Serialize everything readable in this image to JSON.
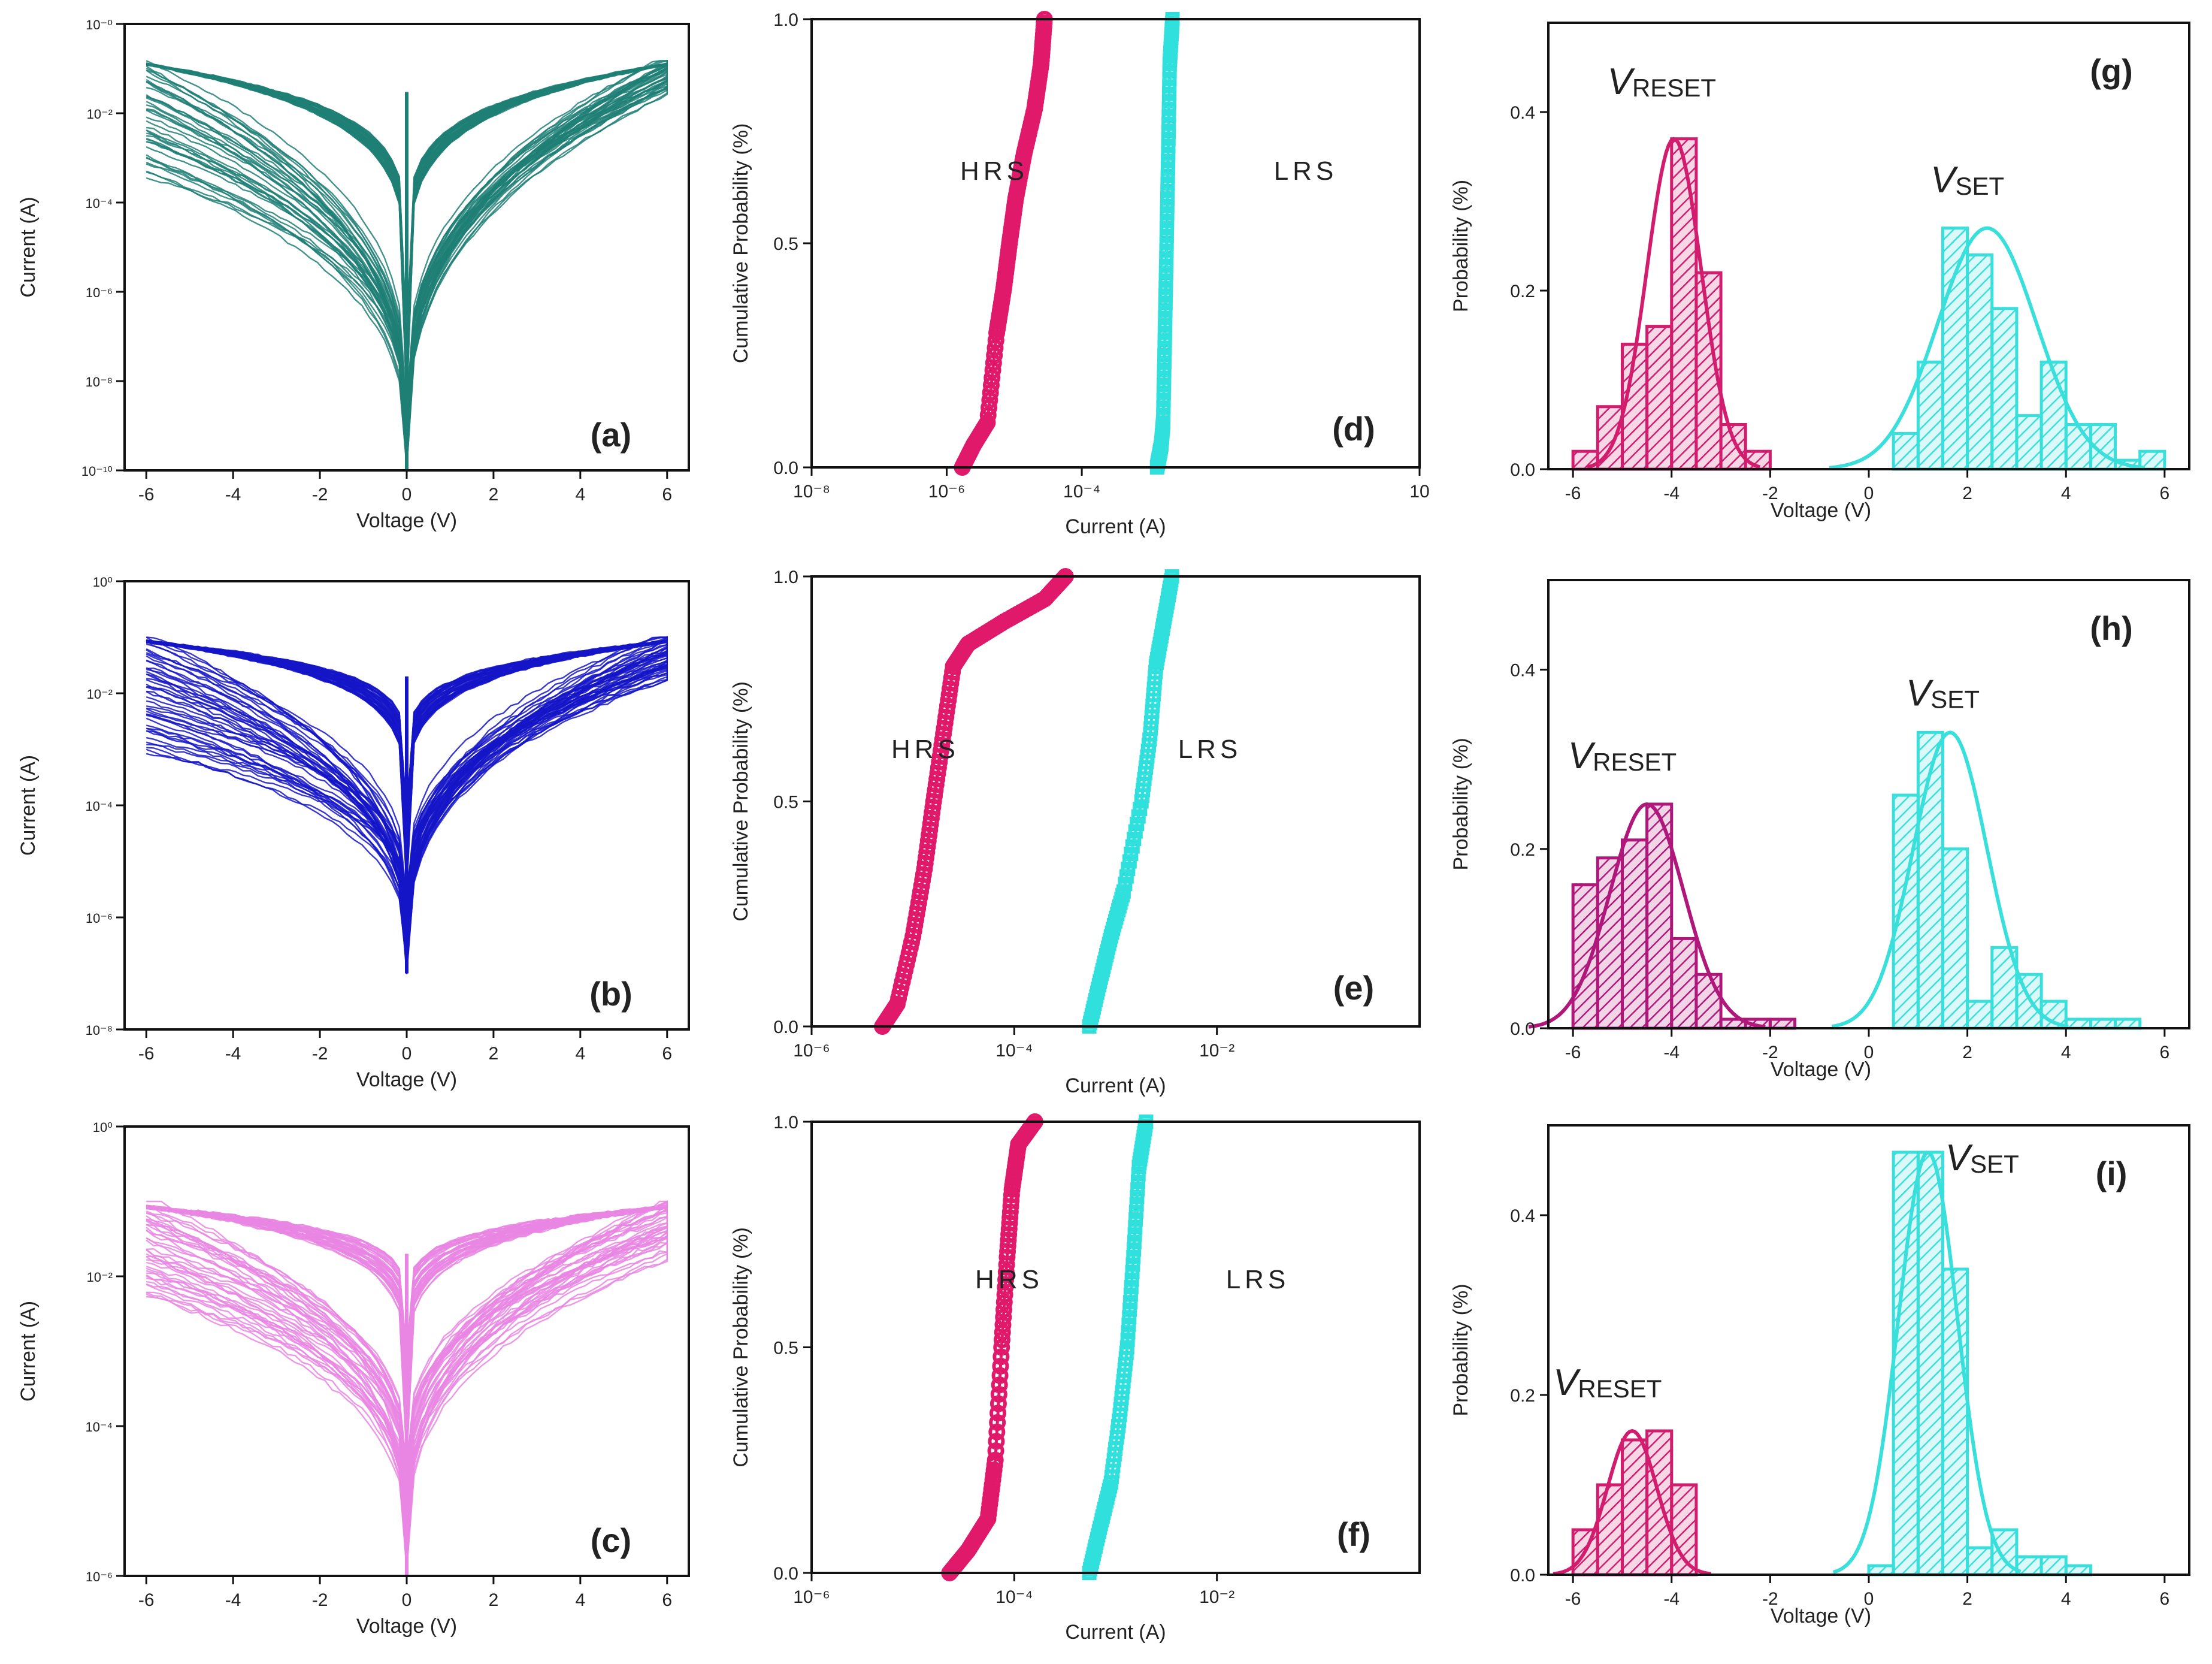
{
  "colors": {
    "a": "#1e7f76",
    "b": "#1515c8",
    "c": "#e986e3",
    "hrs": "#e0196b",
    "lrs": "#30e0dc",
    "g_reset": "#d21c6e",
    "g_set": "#38dfdb",
    "h_reset": "#b0177a"
  },
  "iv_panels": [
    {
      "id": "a",
      "label": "(a)",
      "color_key": "a",
      "xlabel": "Voltage (V)",
      "ylabel": "Current (A)",
      "x_ticks": [
        "-6",
        "-4",
        "-2",
        "0",
        "2",
        "4",
        "6"
      ],
      "y_ticks": [
        "10⁻¹⁰",
        "10⁻⁸",
        "10⁻⁶",
        "10⁻⁴",
        "10⁻²",
        "10⁻⁰"
      ],
      "ylim_log": [
        -10,
        0
      ]
    },
    {
      "id": "b",
      "label": "(b)",
      "color_key": "b",
      "xlabel": "Voltage (V)",
      "ylabel": "Current (A)",
      "x_ticks": [
        "-6",
        "-4",
        "-2",
        "0",
        "2",
        "4",
        "6"
      ],
      "y_ticks": [
        "10⁻⁸",
        "10⁻⁶",
        "10⁻⁴",
        "10⁻²",
        "10⁰"
      ],
      "ylim_log": [
        -8,
        0
      ]
    },
    {
      "id": "c",
      "label": "(c)",
      "color_key": "c",
      "xlabel": "Voltage (V)",
      "ylabel": "Current (A)",
      "x_ticks": [
        "-6",
        "-4",
        "-2",
        "0",
        "2",
        "4",
        "6"
      ],
      "y_ticks": [
        "10⁻⁶",
        "10⁻⁴",
        "10⁻²",
        "10⁰"
      ],
      "ylim_log": [
        -6,
        0
      ]
    }
  ],
  "cdf_panels": [
    {
      "id": "d",
      "label": "(d)",
      "xlabel": "Current (A)",
      "ylabel": "Cumulative Probability (%)",
      "x_ticks": [
        "10⁻⁸",
        "10⁻⁶",
        "10⁻⁴",
        "10"
      ],
      "y_ticks": [
        "0.0",
        "0.5",
        "1.0"
      ],
      "hrs_label": "HRS",
      "lrs_label": "LRS"
    },
    {
      "id": "e",
      "label": "(e)",
      "xlabel": "Current (A)",
      "ylabel": "Cumulative Probability (%)",
      "x_ticks": [
        "10⁻⁶",
        "10⁻⁴",
        "10⁻²"
      ],
      "y_ticks": [
        "0.0",
        "0.5",
        "1.0"
      ],
      "hrs_label": "HRS",
      "lrs_label": "LRS"
    },
    {
      "id": "f",
      "label": "(f)",
      "xlabel": "Current (A)",
      "ylabel": "Cumulative Probability (%)",
      "x_ticks": [
        "10⁻⁶",
        "10⁻⁴",
        "10⁻²"
      ],
      "y_ticks": [
        "0.0",
        "0.5",
        "1.0"
      ],
      "hrs_label": "HRS",
      "lrs_label": "LRS"
    }
  ],
  "hist_panels": [
    {
      "id": "g",
      "label": "(g)",
      "reset_color_key": "g_reset",
      "xlabel": "Voltage (V)",
      "ylabel": "Probability (%)",
      "x_ticks": [
        "-6",
        "-4",
        "-2",
        "0",
        "2",
        "4",
        "6"
      ],
      "y_ticks": [
        "0.0",
        "0.2",
        "0.4"
      ],
      "reset_main": "V",
      "reset_sub": "RESET",
      "set_main": "V",
      "set_sub": "SET"
    },
    {
      "id": "h",
      "label": "(h)",
      "reset_color_key": "h_reset",
      "xlabel": "Voltage (V)",
      "ylabel": "Probability (%)",
      "x_ticks": [
        "-6",
        "-4",
        "-2",
        "0",
        "2",
        "4",
        "6"
      ],
      "y_ticks": [
        "0.0",
        "0.2",
        "0.4"
      ],
      "reset_main": "V",
      "reset_sub": "RESET",
      "set_main": "V",
      "set_sub": "SET"
    },
    {
      "id": "i",
      "label": "(i)",
      "reset_color_key": "g_reset",
      "xlabel": "Voltage (V)",
      "ylabel": "Probability (%)",
      "x_ticks": [
        "-6",
        "-4",
        "-2",
        "0",
        "2",
        "4",
        "6"
      ],
      "y_ticks": [
        "0.0",
        "0.2",
        "0.4"
      ],
      "reset_main": "V",
      "reset_sub": "RESET",
      "set_main": "V",
      "set_sub": "SET"
    }
  ],
  "chart_data": [
    {
      "type": "line",
      "panel": "a",
      "yscale": "log",
      "xlabel": "Voltage (V)",
      "ylabel": "Current (A)",
      "xlim": [
        -6.5,
        6.5
      ],
      "ylim": [
        1e-10,
        1
      ],
      "curve_count": 40,
      "compliance_current": 0.15,
      "min_current_at_0V": 1e-10,
      "upper_envelope_at_6V": 0.15,
      "lower_envelope_at_minus6V": 0.0005
    },
    {
      "type": "line",
      "panel": "b",
      "yscale": "log",
      "xlabel": "Voltage (V)",
      "ylabel": "Current (A)",
      "xlim": [
        -6.5,
        6.5
      ],
      "ylim": [
        1e-08,
        1
      ],
      "curve_count": 45,
      "compliance_current": 0.1,
      "min_current_at_0V": 1e-07,
      "upper_envelope_at_6V": 0.1,
      "lower_envelope_at_minus6V": 0.001
    },
    {
      "type": "line",
      "panel": "c",
      "yscale": "log",
      "xlabel": "Voltage (V)",
      "ylabel": "Current (A)",
      "xlim": [
        -6.5,
        6.5
      ],
      "ylim": [
        1e-06,
        1
      ],
      "curve_count": 40,
      "compliance_current": 0.1,
      "min_current_at_0V": 1e-06,
      "upper_envelope_at_6V": 0.1,
      "lower_envelope_at_minus6V": 0.005
    },
    {
      "type": "scatter",
      "panel": "d",
      "xscale": "log",
      "xlabel": "Current (A)",
      "ylabel": "Cumulative Probability (%)",
      "xlim": [
        1e-08,
        10
      ],
      "ylim": [
        0,
        1
      ],
      "series": [
        {
          "name": "HRS",
          "current": [
            1.7e-06,
            2.5e-06,
            4e-06,
            5.5e-06,
            7e-06,
            8.5e-06,
            1.05e-05,
            1.4e-05,
            2e-05,
            2.5e-05,
            2.8e-05
          ],
          "probability": [
            0.0,
            0.05,
            0.1,
            0.3,
            0.4,
            0.5,
            0.6,
            0.7,
            0.8,
            0.9,
            1.0
          ]
        },
        {
          "name": "LRS",
          "current": [
            0.0013,
            0.0015,
            0.0016,
            0.0017,
            0.0018,
            0.0019,
            0.002,
            0.0022
          ],
          "probability": [
            0.0,
            0.05,
            0.1,
            0.3,
            0.5,
            0.7,
            0.9,
            1.0
          ]
        }
      ]
    },
    {
      "type": "scatter",
      "panel": "e",
      "xscale": "log",
      "xlabel": "Current (A)",
      "ylabel": "Cumulative Probability (%)",
      "xlim": [
        1e-06,
        1
      ],
      "ylim": [
        0,
        1
      ],
      "series": [
        {
          "name": "HRS",
          "current": [
            5e-06,
            7e-06,
            1e-05,
            1.3e-05,
            1.6e-05,
            2e-05,
            2.5e-05,
            3.5e-05,
            8e-05,
            0.0002,
            0.00032
          ],
          "probability": [
            0.0,
            0.05,
            0.2,
            0.35,
            0.5,
            0.65,
            0.8,
            0.85,
            0.9,
            0.95,
            1.0
          ]
        },
        {
          "name": "LRS",
          "current": [
            0.00055,
            0.0007,
            0.0009,
            0.0012,
            0.0018,
            0.0022,
            0.0025,
            0.003,
            0.0036
          ],
          "probability": [
            0.0,
            0.1,
            0.2,
            0.3,
            0.5,
            0.65,
            0.8,
            0.9,
            1.0
          ]
        }
      ]
    },
    {
      "type": "scatter",
      "panel": "f",
      "xscale": "log",
      "xlabel": "Current (A)",
      "ylabel": "Cumulative Probability (%)",
      "xlim": [
        1e-06,
        1
      ],
      "ylim": [
        0,
        1
      ],
      "series": [
        {
          "name": "HRS",
          "current": [
            2.3e-05,
            3.5e-05,
            5.5e-05,
            6.5e-05,
            7.5e-05,
            8.5e-05,
            9.5e-05,
            0.00011,
            0.00016
          ],
          "probability": [
            0.0,
            0.05,
            0.12,
            0.25,
            0.5,
            0.7,
            0.85,
            0.95,
            1.0
          ]
        },
        {
          "name": "LRS",
          "current": [
            0.00055,
            0.0007,
            0.0009,
            0.0011,
            0.0013,
            0.0015,
            0.0017,
            0.002
          ],
          "probability": [
            0.0,
            0.1,
            0.2,
            0.35,
            0.5,
            0.7,
            0.9,
            1.0
          ]
        }
      ]
    },
    {
      "type": "bar",
      "panel": "g",
      "xlabel": "Voltage (V)",
      "ylabel": "Probability (%)",
      "xlim": [
        -6.5,
        6.5
      ],
      "ylim": [
        0,
        0.5
      ],
      "bin_width": 0.5,
      "series": [
        {
          "name": "VRESET",
          "centers": [
            -5.75,
            -5.25,
            -4.75,
            -4.25,
            -3.75,
            -3.25,
            -2.75,
            -2.25
          ],
          "values": [
            0.02,
            0.07,
            0.14,
            0.16,
            0.37,
            0.22,
            0.05,
            0.02
          ],
          "fit_mean": -3.95,
          "fit_sigma": 0.55,
          "fit_peak": 0.37
        },
        {
          "name": "VSET",
          "centers": [
            0.75,
            1.25,
            1.75,
            2.25,
            2.75,
            3.25,
            3.75,
            4.25,
            4.75,
            5.25,
            5.75
          ],
          "values": [
            0.04,
            0.12,
            0.27,
            0.24,
            0.18,
            0.06,
            0.12,
            0.05,
            0.05,
            0.01,
            0.02
          ],
          "fit_mean": 2.4,
          "fit_sigma": 1.0,
          "fit_peak": 0.27
        }
      ]
    },
    {
      "type": "bar",
      "panel": "h",
      "xlabel": "Voltage (V)",
      "ylabel": "Probability (%)",
      "xlim": [
        -6.5,
        6.5
      ],
      "ylim": [
        0,
        0.5
      ],
      "bin_width": 0.5,
      "series": [
        {
          "name": "VRESET",
          "centers": [
            -5.75,
            -5.25,
            -4.75,
            -4.25,
            -3.75,
            -3.25,
            -2.75,
            -2.25,
            -1.75
          ],
          "values": [
            0.16,
            0.19,
            0.21,
            0.25,
            0.1,
            0.06,
            0.01,
            0.01,
            0.01
          ],
          "fit_mean": -4.5,
          "fit_sigma": 0.75,
          "fit_peak": 0.25
        },
        {
          "name": "VSET",
          "centers": [
            0.75,
            1.25,
            1.75,
            2.25,
            2.75,
            3.25,
            3.75,
            4.25,
            4.75,
            5.25
          ],
          "values": [
            0.26,
            0.33,
            0.2,
            0.03,
            0.09,
            0.06,
            0.03,
            0.01,
            0.01,
            0.01
          ],
          "fit_mean": 1.65,
          "fit_sigma": 0.75,
          "fit_peak": 0.33
        }
      ]
    },
    {
      "type": "bar",
      "panel": "i",
      "xlabel": "Voltage (V)",
      "ylabel": "Probability (%)",
      "xlim": [
        -6.5,
        6.5
      ],
      "ylim": [
        0,
        0.5
      ],
      "bin_width": 0.5,
      "series": [
        {
          "name": "VRESET",
          "centers": [
            -5.75,
            -5.25,
            -4.75,
            -4.25,
            -3.75
          ],
          "values": [
            0.05,
            0.1,
            0.15,
            0.16,
            0.1
          ],
          "fit_mean": -4.8,
          "fit_sigma": 0.5,
          "fit_peak": 0.16
        },
        {
          "name": "VSET",
          "centers": [
            0.25,
            0.75,
            1.25,
            1.75,
            2.25,
            2.75,
            3.25,
            3.75,
            4.25
          ],
          "values": [
            0.01,
            0.47,
            0.47,
            0.34,
            0.03,
            0.05,
            0.02,
            0.02,
            0.01
          ],
          "fit_mean": 1.2,
          "fit_sigma": 0.6,
          "fit_peak": 0.47
        }
      ]
    }
  ]
}
